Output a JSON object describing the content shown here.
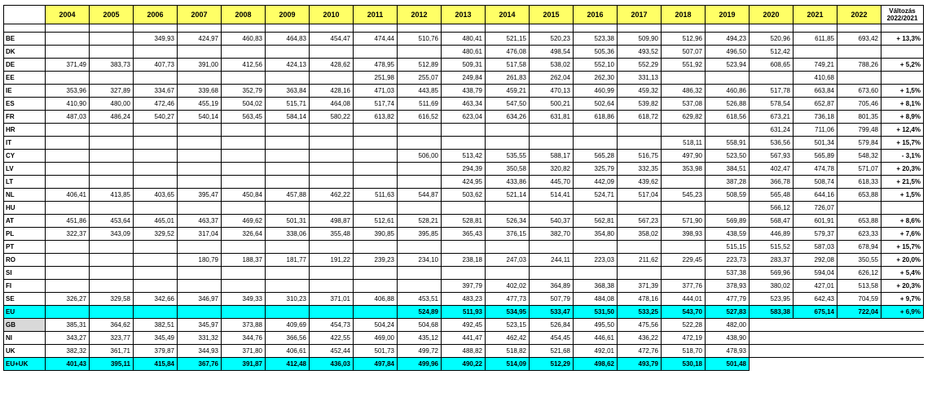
{
  "header": {
    "years": [
      "2004",
      "2005",
      "2006",
      "2007",
      "2008",
      "2009",
      "2010",
      "2011",
      "2012",
      "2013",
      "2014",
      "2015",
      "2016",
      "2017",
      "2018",
      "2019",
      "2020",
      "2021",
      "2022"
    ],
    "change_line1": "Változás",
    "change_line2": "2022/2021"
  },
  "rows": [
    {
      "c": "BE",
      "v": [
        "",
        "",
        "349,93",
        "424,97",
        "460,83",
        "464,83",
        "454,47",
        "474,44",
        "510,76",
        "480,41",
        "521,15",
        "520,23",
        "523,38",
        "509,90",
        "512,96",
        "494,23",
        "520,96",
        "611,85",
        "693,42"
      ],
      "p": "+ 13,3%"
    },
    {
      "c": "DK",
      "v": [
        "",
        "",
        "",
        "",
        "",
        "",
        "",
        "",
        "",
        "480,61",
        "476,08",
        "498,54",
        "505,36",
        "493,52",
        "507,07",
        "496,50",
        "512,42",
        "",
        ""
      ],
      "p": ""
    },
    {
      "c": "DE",
      "v": [
        "371,49",
        "383,73",
        "407,73",
        "391,00",
        "412,56",
        "424,13",
        "428,62",
        "478,95",
        "512,89",
        "509,31",
        "517,58",
        "538,02",
        "552,10",
        "552,29",
        "551,92",
        "523,94",
        "608,65",
        "749,21",
        "788,26"
      ],
      "p": "+ 5,2%"
    },
    {
      "c": "EE",
      "v": [
        "",
        "",
        "",
        "",
        "",
        "",
        "",
        "251,98",
        "255,07",
        "249,84",
        "261,83",
        "262,04",
        "262,30",
        "331,13",
        "",
        "",
        "",
        "410,68",
        ""
      ],
      "p": ""
    },
    {
      "c": "IE",
      "v": [
        "353,96",
        "327,89",
        "334,67",
        "339,68",
        "352,79",
        "363,84",
        "428,16",
        "471,03",
        "443,85",
        "438,79",
        "459,21",
        "470,13",
        "460,99",
        "459,32",
        "486,32",
        "460,86",
        "517,78",
        "663,84",
        "673,60"
      ],
      "p": "+ 1,5%"
    },
    {
      "c": "ES",
      "v": [
        "410,90",
        "480,00",
        "472,46",
        "455,19",
        "504,02",
        "515,71",
        "464,08",
        "517,74",
        "511,69",
        "463,34",
        "547,50",
        "500,21",
        "502,64",
        "539,82",
        "537,08",
        "526,88",
        "578,54",
        "652,87",
        "705,46"
      ],
      "p": "+ 8,1%"
    },
    {
      "c": "FR",
      "v": [
        "487,03",
        "486,24",
        "540,27",
        "540,14",
        "563,45",
        "584,14",
        "580,22",
        "613,82",
        "616,52",
        "623,04",
        "634,26",
        "631,81",
        "618,86",
        "618,72",
        "629,82",
        "618,56",
        "673,21",
        "736,18",
        "801,35"
      ],
      "p": "+ 8,9%"
    },
    {
      "c": "HR",
      "v": [
        "",
        "",
        "",
        "",
        "",
        "",
        "",
        "",
        "",
        "",
        "",
        "",
        "",
        "",
        "",
        "",
        "631,24",
        "711,06",
        "799,48"
      ],
      "p": "+ 12,4%"
    },
    {
      "c": "IT",
      "v": [
        "",
        "",
        "",
        "",
        "",
        "",
        "",
        "",
        "",
        "",
        "",
        "",
        "",
        "",
        "518,11",
        "558,91",
        "536,56",
        "501,34",
        "579,84"
      ],
      "p": "+ 15,7%"
    },
    {
      "c": "CY",
      "v": [
        "",
        "",
        "",
        "",
        "",
        "",
        "",
        "",
        "506,00",
        "513,42",
        "535,55",
        "588,17",
        "565,28",
        "516,75",
        "497,90",
        "523,50",
        "567,93",
        "565,89",
        "548,32"
      ],
      "p": "- 3,1%"
    },
    {
      "c": "LV",
      "v": [
        "",
        "",
        "",
        "",
        "",
        "",
        "",
        "",
        "",
        "294,39",
        "350,58",
        "320,82",
        "325,79",
        "332,35",
        "353,98",
        "384,51",
        "402,47",
        "474,78",
        "571,07"
      ],
      "p": "+ 20,3%"
    },
    {
      "c": "LT",
      "v": [
        "",
        "",
        "",
        "",
        "",
        "",
        "",
        "",
        "",
        "424,95",
        "433,86",
        "445,70",
        "442,09",
        "439,62",
        "",
        "387,28",
        "366,78",
        "508,74",
        "618,33"
      ],
      "p": "+ 21,5%"
    },
    {
      "c": "NL",
      "v": [
        "406,41",
        "413,85",
        "403,65",
        "395,47",
        "450,84",
        "457,88",
        "462,22",
        "511,63",
        "544,87",
        "503,62",
        "521,14",
        "514,41",
        "524,71",
        "517,04",
        "545,23",
        "508,59",
        "565,48",
        "644,16",
        "653,88"
      ],
      "p": "+ 1,5%"
    },
    {
      "c": "HU",
      "v": [
        "",
        "",
        "",
        "",
        "",
        "",
        "",
        "",
        "",
        "",
        "",
        "",
        "",
        "",
        "",
        "",
        "566,12",
        "726,07",
        ""
      ],
      "p": ""
    },
    {
      "c": "AT",
      "v": [
        "451,86",
        "453,64",
        "465,01",
        "463,37",
        "469,62",
        "501,31",
        "498,87",
        "512,61",
        "528,21",
        "528,81",
        "526,34",
        "540,37",
        "562,81",
        "567,23",
        "571,90",
        "569,89",
        "568,47",
        "601,91",
        "653,88"
      ],
      "p": "+ 8,6%"
    },
    {
      "c": "PL",
      "v": [
        "322,37",
        "343,09",
        "329,52",
        "317,04",
        "326,64",
        "338,06",
        "355,48",
        "390,85",
        "395,85",
        "365,43",
        "376,15",
        "382,70",
        "354,80",
        "358,02",
        "398,93",
        "438,59",
        "446,89",
        "579,37",
        "623,33"
      ],
      "p": "+ 7,6%"
    },
    {
      "c": "PT",
      "v": [
        "",
        "",
        "",
        "",
        "",
        "",
        "",
        "",
        "",
        "",
        "",
        "",
        "",
        "",
        "",
        "515,15",
        "515,52",
        "587,03",
        "678,94"
      ],
      "p": "+ 15,7%"
    },
    {
      "c": "RO",
      "v": [
        "",
        "",
        "",
        "180,79",
        "188,37",
        "181,77",
        "191,22",
        "239,23",
        "234,10",
        "238,18",
        "247,03",
        "244,11",
        "223,03",
        "211,62",
        "229,45",
        "223,73",
        "283,37",
        "292,08",
        "350,55"
      ],
      "p": "+ 20,0%"
    },
    {
      "c": "SI",
      "v": [
        "",
        "",
        "",
        "",
        "",
        "",
        "",
        "",
        "",
        "",
        "",
        "",
        "",
        "",
        "",
        "537,38",
        "569,96",
        "594,04",
        "626,12"
      ],
      "p": "+ 5,4%"
    },
    {
      "c": "FI",
      "v": [
        "",
        "",
        "",
        "",
        "",
        "",
        "",
        "",
        "",
        "397,79",
        "402,02",
        "364,89",
        "368,38",
        "371,39",
        "377,76",
        "378,93",
        "380,02",
        "427,01",
        "513,58"
      ],
      "p": "+ 20,3%"
    },
    {
      "c": "SE",
      "v": [
        "326,27",
        "329,58",
        "342,66",
        "346,97",
        "349,33",
        "310,23",
        "371,01",
        "406,88",
        "453,51",
        "483,23",
        "477,73",
        "507,79",
        "484,08",
        "478,16",
        "444,01",
        "477,79",
        "523,95",
        "642,43",
        "704,59"
      ],
      "p": "+ 9,7%"
    },
    {
      "c": "EU",
      "v": [
        "",
        "",
        "",
        "",
        "",
        "",
        "",
        "",
        "524,89",
        "511,93",
        "534,95",
        "533,47",
        "531,50",
        "533,25",
        "543,70",
        "527,83",
        "583,38",
        "675,14",
        "722,04"
      ],
      "p": "+ 6,9%"
    },
    {
      "c": "GB",
      "v": [
        "385,31",
        "364,62",
        "382,51",
        "345,97",
        "373,88",
        "409,69",
        "454,73",
        "504,24",
        "504,68",
        "492,45",
        "523,15",
        "526,84",
        "495,50",
        "475,56",
        "522,28",
        "482,00"
      ]
    },
    {
      "c": "NI",
      "v": [
        "343,27",
        "323,77",
        "345,49",
        "331,32",
        "344,76",
        "366,56",
        "422,55",
        "469,00",
        "435,12",
        "441,47",
        "462,42",
        "454,45",
        "446,61",
        "436,22",
        "472,19",
        "438,90"
      ]
    },
    {
      "c": "UK",
      "v": [
        "382,32",
        "361,71",
        "379,87",
        "344,93",
        "371,80",
        "406,61",
        "452,44",
        "501,73",
        "499,72",
        "488,82",
        "518,82",
        "521,68",
        "492,01",
        "472,76",
        "518,70",
        "478,93"
      ]
    },
    {
      "c": "EU+UK",
      "v": [
        "401,43",
        "395,11",
        "415,84",
        "367,76",
        "391,87",
        "412,48",
        "436,03",
        "497,84",
        "499,96",
        "490,22",
        "514,09",
        "512,29",
        "498,62",
        "493,79",
        "530,18",
        "501,48"
      ]
    }
  ]
}
